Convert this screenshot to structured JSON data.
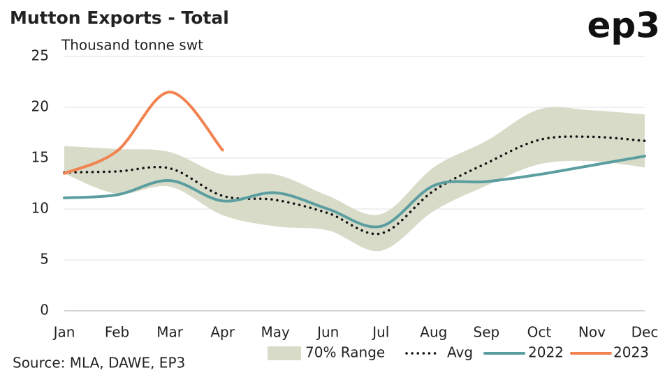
{
  "chart_data": {
    "type": "line",
    "title": "Mutton Exports - Total",
    "subtitle": "Thousand tonne swt",
    "logo": "ep3",
    "source": "Source: MLA, DAWE, EP3",
    "categories": [
      "Jan",
      "Feb",
      "Mar",
      "Apr",
      "May",
      "Jun",
      "Jul",
      "Aug",
      "Sep",
      "Oct",
      "Nov",
      "Dec"
    ],
    "range": {
      "name": "70% Range",
      "color": "#d9dbc9",
      "upper": [
        16.2,
        15.9,
        15.6,
        13.4,
        13.4,
        11.3,
        9.5,
        14.1,
        16.7,
        19.8,
        19.7,
        19.3
      ],
      "lower": [
        13.5,
        11.5,
        12.2,
        9.4,
        8.3,
        7.9,
        5.9,
        9.8,
        12.3,
        14.4,
        14.7,
        14.1
      ]
    },
    "series": [
      {
        "name": "Avg",
        "color": "#111111",
        "dotted": true,
        "values": [
          13.6,
          13.7,
          14.0,
          11.3,
          10.9,
          9.6,
          7.6,
          11.8,
          14.5,
          16.8,
          17.1,
          16.7
        ]
      },
      {
        "name": "2022",
        "color": "#5b9ea0",
        "values": [
          11.1,
          11.4,
          12.8,
          10.8,
          11.6,
          10.0,
          8.3,
          12.3,
          12.7,
          13.4,
          14.3,
          15.2
        ]
      },
      {
        "name": "2023",
        "color": "#f0834f",
        "values": [
          13.5,
          15.7,
          21.5,
          15.8,
          null,
          null,
          null,
          null,
          null,
          null,
          null,
          null
        ]
      }
    ],
    "ylim": [
      0,
      25
    ],
    "yticks": [
      0,
      5,
      10,
      15,
      20,
      25
    ],
    "grid": true
  }
}
